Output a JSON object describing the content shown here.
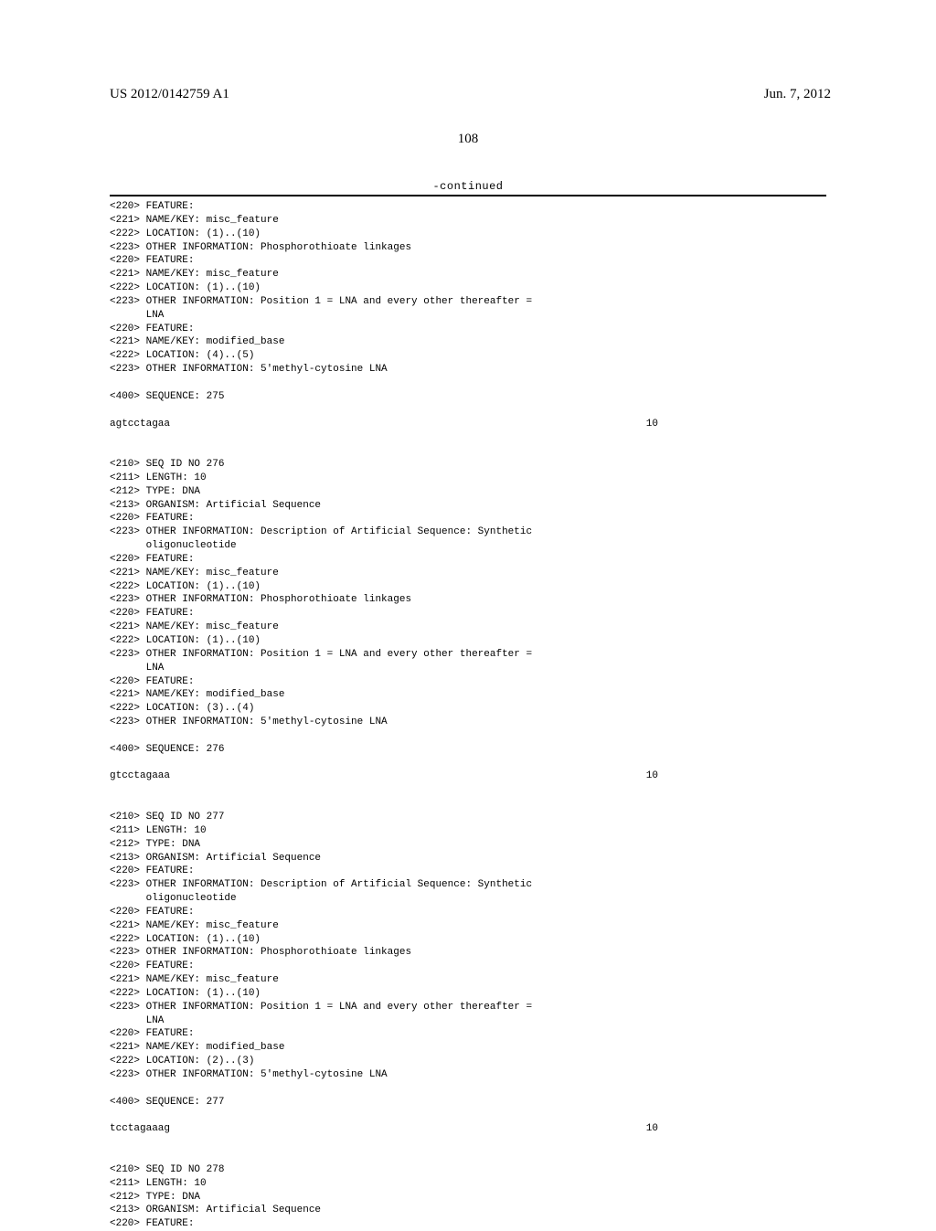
{
  "header": {
    "pub_number": "US 2012/0142759 A1",
    "pub_date": "Jun. 7, 2012"
  },
  "page_number": "108",
  "continued_label": "-continued",
  "blocks": [
    {
      "lines": [
        "<220> FEATURE:",
        "<221> NAME/KEY: misc_feature",
        "<222> LOCATION: (1)..(10)",
        "<223> OTHER INFORMATION: Phosphorothioate linkages",
        "<220> FEATURE:",
        "<221> NAME/KEY: misc_feature",
        "<222> LOCATION: (1)..(10)",
        "<223> OTHER INFORMATION: Position 1 = LNA and every other thereafter =",
        "      LNA",
        "<220> FEATURE:",
        "<221> NAME/KEY: modified_base",
        "<222> LOCATION: (4)..(5)",
        "<223> OTHER INFORMATION: 5'methyl-cytosine LNA",
        "",
        "<400> SEQUENCE: 275"
      ],
      "sequence": "agtcctagaa",
      "seq_len": "10"
    },
    {
      "lines": [
        "<210> SEQ ID NO 276",
        "<211> LENGTH: 10",
        "<212> TYPE: DNA",
        "<213> ORGANISM: Artificial Sequence",
        "<220> FEATURE:",
        "<223> OTHER INFORMATION: Description of Artificial Sequence: Synthetic",
        "      oligonucleotide",
        "<220> FEATURE:",
        "<221> NAME/KEY: misc_feature",
        "<222> LOCATION: (1)..(10)",
        "<223> OTHER INFORMATION: Phosphorothioate linkages",
        "<220> FEATURE:",
        "<221> NAME/KEY: misc_feature",
        "<222> LOCATION: (1)..(10)",
        "<223> OTHER INFORMATION: Position 1 = LNA and every other thereafter =",
        "      LNA",
        "<220> FEATURE:",
        "<221> NAME/KEY: modified_base",
        "<222> LOCATION: (3)..(4)",
        "<223> OTHER INFORMATION: 5'methyl-cytosine LNA",
        "",
        "<400> SEQUENCE: 276"
      ],
      "sequence": "gtcctagaaa",
      "seq_len": "10"
    },
    {
      "lines": [
        "<210> SEQ ID NO 277",
        "<211> LENGTH: 10",
        "<212> TYPE: DNA",
        "<213> ORGANISM: Artificial Sequence",
        "<220> FEATURE:",
        "<223> OTHER INFORMATION: Description of Artificial Sequence: Synthetic",
        "      oligonucleotide",
        "<220> FEATURE:",
        "<221> NAME/KEY: misc_feature",
        "<222> LOCATION: (1)..(10)",
        "<223> OTHER INFORMATION: Phosphorothioate linkages",
        "<220> FEATURE:",
        "<221> NAME/KEY: misc_feature",
        "<222> LOCATION: (1)..(10)",
        "<223> OTHER INFORMATION: Position 1 = LNA and every other thereafter =",
        "      LNA",
        "<220> FEATURE:",
        "<221> NAME/KEY: modified_base",
        "<222> LOCATION: (2)..(3)",
        "<223> OTHER INFORMATION: 5'methyl-cytosine LNA",
        "",
        "<400> SEQUENCE: 277"
      ],
      "sequence": "tcctagaaag",
      "seq_len": "10"
    },
    {
      "lines": [
        "<210> SEQ ID NO 278",
        "<211> LENGTH: 10",
        "<212> TYPE: DNA",
        "<213> ORGANISM: Artificial Sequence",
        "<220> FEATURE:"
      ],
      "sequence": null,
      "seq_len": null
    }
  ]
}
